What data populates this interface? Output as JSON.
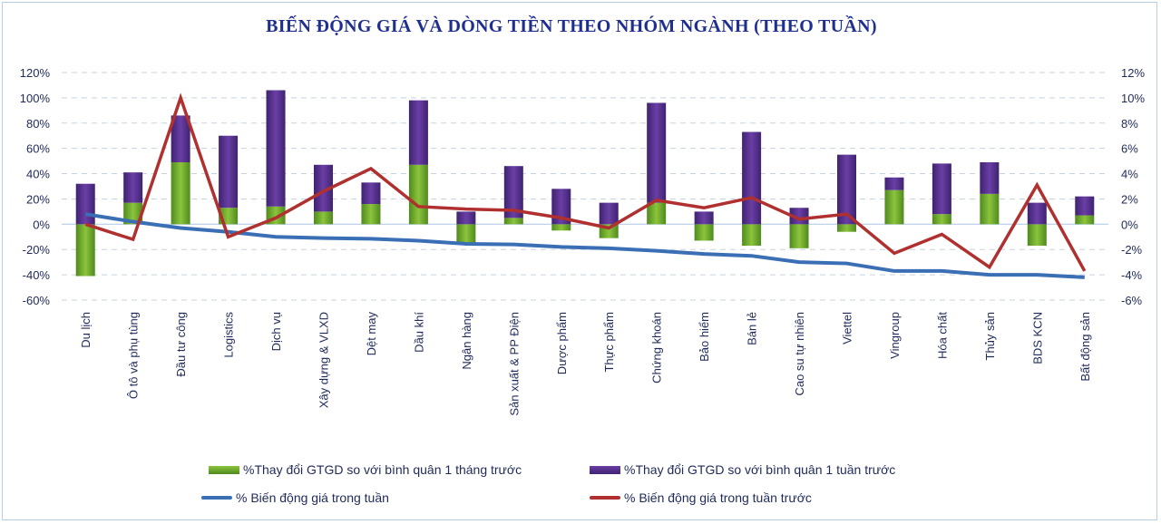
{
  "chart_data": {
    "type": "bar",
    "title": "BIẾN ĐỘNG GIÁ VÀ DÒNG TIỀN THEO NHÓM NGÀNH (THEO TUẦN)",
    "categories": [
      "Du lịch",
      "Ô tô và phụ tùng",
      "Đầu tư công",
      "Logistics",
      "Dịch vụ",
      "Xây dựng & VLXD",
      "Dệt may",
      "Dầu khí",
      "Ngân hàng",
      "Sản xuất & PP Điện",
      "Dược phẩm",
      "Thực phẩm",
      "Chứng khoán",
      "Bảo hiểm",
      "Bán lẻ",
      "Cao su tự nhiên",
      "Viettel",
      "Vingroup",
      "Hóa chất",
      "Thủy sản",
      "BDS KCN",
      "Bất động sản"
    ],
    "left_axis": {
      "ylim": [
        -60,
        120
      ],
      "ticks": [
        "-60%",
        "-40%",
        "-20%",
        "0%",
        "20%",
        "40%",
        "60%",
        "80%",
        "100%",
        "120%"
      ]
    },
    "right_axis": {
      "ylim": [
        -6,
        12
      ],
      "ticks": [
        "-6%",
        "-4%",
        "-2%",
        "0%",
        "2%",
        "4%",
        "6%",
        "8%",
        "10%",
        "12%"
      ]
    },
    "grid": "horizontal dashed",
    "legend_placement": "bottom",
    "series": [
      {
        "name": "%Thay đổi GTGD so với bình quân 1 tháng trước",
        "type": "stacked-bar",
        "axis": "left",
        "color": "#6fa52a",
        "values": [
          -41,
          17,
          49,
          13,
          14,
          10,
          16,
          47,
          -16,
          5,
          -5,
          -11,
          17,
          -13,
          -17,
          -19,
          -6,
          27,
          8,
          24,
          -17,
          7
        ]
      },
      {
        "name": "%Thay đổi GTGD so với bình quân 1 tuần trước",
        "type": "stacked-bar",
        "axis": "left",
        "color": "#5b3490",
        "values": [
          32,
          24,
          37,
          57,
          92,
          37,
          17,
          51,
          10,
          41,
          28,
          17,
          79,
          10,
          73,
          13,
          55,
          10,
          40,
          25,
          17,
          15
        ]
      },
      {
        "name": "% Biến động giá trong tuần",
        "type": "line",
        "axis": "right",
        "color": "#3a6fb5",
        "values": [
          0.8,
          0.2,
          -0.3,
          -0.6,
          -1.0,
          -1.1,
          -1.15,
          -1.3,
          -1.55,
          -1.6,
          -1.8,
          -1.9,
          -2.1,
          -2.35,
          -2.5,
          -3.0,
          -3.1,
          -3.7,
          -3.7,
          -4.0,
          -4.0,
          -4.2
        ]
      },
      {
        "name": "% Biến động giá trong tuần trước",
        "type": "line",
        "axis": "right",
        "color": "#b03030",
        "values": [
          0,
          -1.2,
          10.0,
          -1.0,
          0.5,
          2.6,
          4.4,
          1.4,
          1.2,
          1.1,
          0.5,
          -0.3,
          1.9,
          1.3,
          2.1,
          0.4,
          0.8,
          -2.3,
          -0.8,
          -3.4,
          3.1,
          -3.7
        ]
      }
    ]
  }
}
